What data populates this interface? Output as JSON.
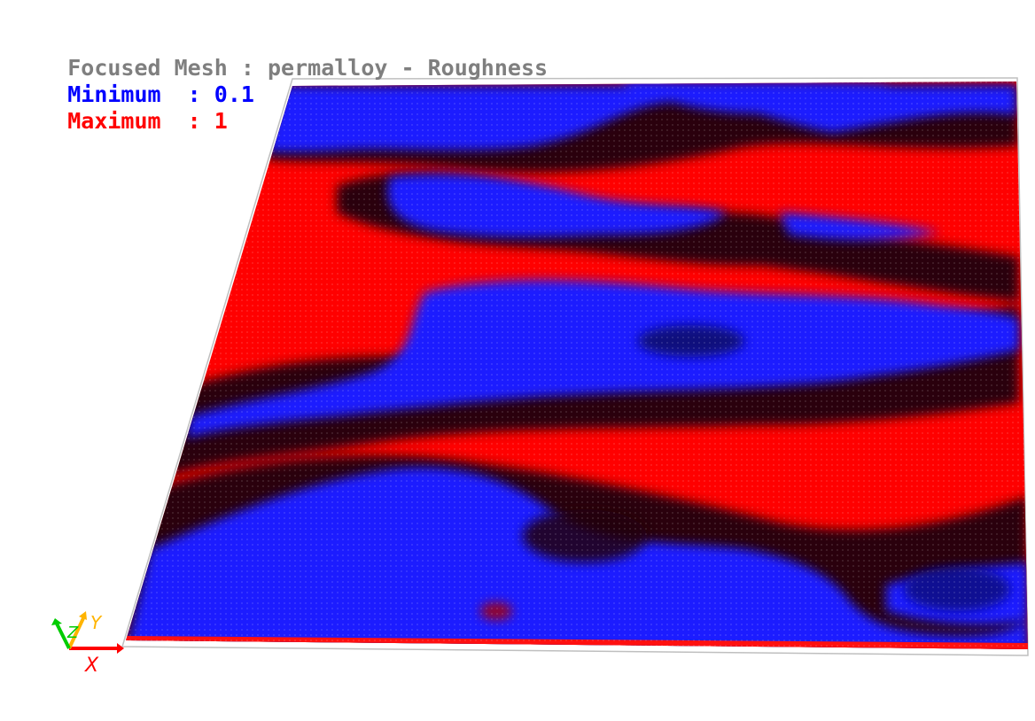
{
  "overlay": {
    "title": "Focused Mesh : permalloy - Roughness",
    "minimum_label": "Minimum  : ",
    "minimum_value": "0.1",
    "maximum_label": "Maximum  : ",
    "maximum_value": "1"
  },
  "colors": {
    "title": "#7f7f7f",
    "minimum": "#0000ff",
    "maximum": "#ff0000",
    "background": "#ffffff",
    "outline": "#bfbfbf",
    "mid": "#000033"
  },
  "axes": {
    "x_label": "X",
    "y_label": "Y",
    "z_label": "Z",
    "x_color": "#ff0000",
    "y_color": "#ffb400",
    "z_color": "#00cc00"
  }
}
